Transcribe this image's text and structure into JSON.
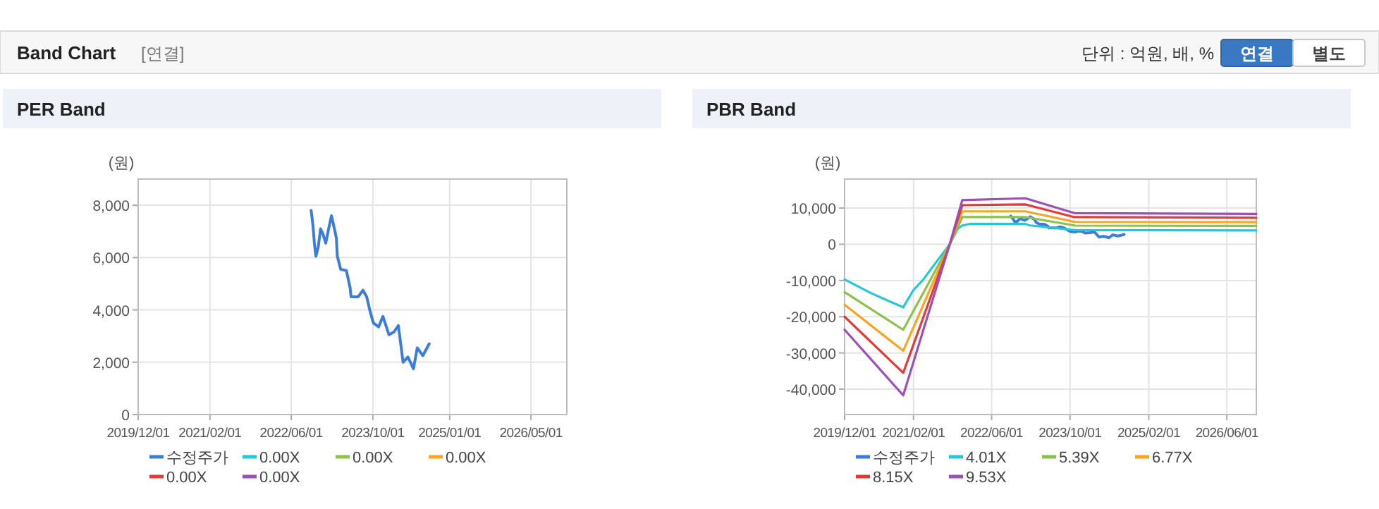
{
  "chart_data": [
    {
      "type": "other",
      "title": "Band Chart",
      "subtitle": "[연결]",
      "annotations": [
        "단위 : 억원, 배, %",
        "연결",
        "별도"
      ]
    },
    {
      "type": "line",
      "title": "PER Band",
      "ylabel": "(원)",
      "xlim": [
        "2019-12-01",
        "2026-12-01"
      ],
      "ylim": [
        0,
        9000
      ],
      "xticks": [
        {
          "value": "2019-12-01",
          "label": "2019/12/01"
        },
        {
          "value": "2021-02-01",
          "label": "2021/02/01"
        },
        {
          "value": "2022-06-01",
          "label": "2022/06/01"
        },
        {
          "value": "2023-10-01",
          "label": "2023/10/01"
        },
        {
          "value": "2025-01-01",
          "label": "2025/01/01"
        },
        {
          "value": "2026-05-01",
          "label": "2026/05/01"
        }
      ],
      "yticks": [
        0,
        {
          "value": 2000,
          "label": "2,000"
        },
        {
          "value": 4000,
          "label": "4,000"
        },
        {
          "value": 6000,
          "label": "6,000"
        },
        {
          "value": 8000,
          "label": "8,000"
        }
      ],
      "grid": true,
      "legend": "bottom",
      "line_style": "solid",
      "series": [
        {
          "name": "수정주가",
          "color": "#3b7dd8",
          "x": [
            "2022-09-28",
            "2022-10-09",
            "2022-10-17",
            "2022-10-26",
            "2022-11-09",
            "2022-11-23",
            "2022-12-07",
            "2022-12-24",
            "2023-01-10",
            "2023-01-27",
            "2023-02-10",
            "2023-02-25",
            "2023-03-03",
            "2023-03-23",
            "2023-04-26",
            "2023-05-18",
            "2023-05-24",
            "2023-07-05",
            "2023-08-03",
            "2023-08-25",
            "2023-09-14",
            "2023-10-04",
            "2023-11-04",
            "2023-11-30",
            "2024-01-05",
            "2024-02-03",
            "2024-03-01",
            "2024-03-29",
            "2024-04-27",
            "2024-05-30",
            "2024-06-22",
            "2024-07-25",
            "2024-09-01"
          ],
          "values": [
            7800,
            7200,
            6550,
            6050,
            6400,
            7100,
            6900,
            6550,
            7100,
            7600,
            7200,
            6750,
            6050,
            5550,
            5500,
            4850,
            4500,
            4500,
            4750,
            4500,
            3950,
            3500,
            3350,
            3750,
            3050,
            3150,
            3400,
            2000,
            2200,
            1750,
            2550,
            2250,
            2700
          ]
        },
        {
          "name": "0.00X",
          "color": "#26c6da"
        },
        {
          "name": "0.00X",
          "color": "#8bc34a"
        },
        {
          "name": "0.00X",
          "color": "#f6a623"
        },
        {
          "name": "0.00X",
          "color": "#e53935"
        },
        {
          "name": "0.00X",
          "color": "#9c4fb7"
        }
      ]
    },
    {
      "type": "line",
      "title": "PBR Band",
      "ylabel": "(원)",
      "xlim": [
        "2019-12-01",
        "2026-12-01"
      ],
      "ylim": [
        -47000,
        18000
      ],
      "xticks": [
        {
          "value": "2019-12-01",
          "label": "2019/12/01"
        },
        {
          "value": "2021-02-01",
          "label": "2021/02/01"
        },
        {
          "value": "2022-06-01",
          "label": "2022/06/01"
        },
        {
          "value": "2023-10-01",
          "label": "2023/10/01"
        },
        {
          "value": "2025-02-01",
          "label": "2025/02/01"
        },
        {
          "value": "2026-06-01",
          "label": "2026/06/01"
        }
      ],
      "yticks": [
        {
          "value": -40000,
          "label": "-40,000"
        },
        {
          "value": -30000,
          "label": "-30,000"
        },
        {
          "value": -20000,
          "label": "-20,000"
        },
        {
          "value": -10000,
          "label": "-10,000"
        },
        0,
        {
          "value": 10000,
          "label": "10,000"
        }
      ],
      "grid": true,
      "legend": "bottom",
      "line_style": "solid",
      "series": [
        {
          "name": "수정주가",
          "color": "#3b7dd8",
          "x": [
            "2022-09-28",
            "2022-10-09",
            "2022-10-17",
            "2022-10-26",
            "2022-11-09",
            "2022-11-23",
            "2022-12-07",
            "2022-12-24",
            "2023-01-10",
            "2023-01-27",
            "2023-02-10",
            "2023-02-25",
            "2023-03-03",
            "2023-03-23",
            "2023-04-26",
            "2023-05-18",
            "2023-05-24",
            "2023-07-05",
            "2023-08-03",
            "2023-08-25",
            "2023-09-14",
            "2023-10-04",
            "2023-11-04",
            "2023-11-30",
            "2024-01-05",
            "2024-02-03",
            "2024-03-01",
            "2024-03-29",
            "2024-04-27",
            "2024-05-30",
            "2024-06-22",
            "2024-07-25",
            "2024-09-01"
          ],
          "values": [
            7800,
            7200,
            6600,
            6100,
            6400,
            7100,
            6900,
            6600,
            7100,
            7600,
            7200,
            6800,
            6100,
            5600,
            5500,
            4900,
            4500,
            4500,
            4800,
            4500,
            4000,
            3500,
            3400,
            3800,
            3100,
            3200,
            3400,
            2000,
            2200,
            1800,
            2600,
            2300,
            2700
          ]
        },
        {
          "name": "4.01X",
          "color": "#26c6da",
          "x": [
            "2019-12-01",
            "2020-05-14",
            "2020-09-08",
            "2020-11-29",
            "2021-02-01",
            "2021-03-29",
            "2021-06-24",
            "2021-09-14",
            "2021-11-03",
            "2021-12-01",
            "2022-01-15",
            "2022-12-28",
            "2023-01-26",
            "2023-10-28",
            "2026-12-01"
          ],
          "values": [
            -9700,
            -13500,
            -15800,
            -17400,
            -12600,
            -10000,
            -4800,
            0,
            4300,
            5200,
            5600,
            5600,
            5200,
            3900,
            3800
          ]
        },
        {
          "name": "5.39X",
          "color": "#8bc34a",
          "x": [
            "2019-12-01",
            "2020-11-29",
            "2021-09-14",
            "2021-12-01",
            "2022-12-28",
            "2023-10-28",
            "2026-12-01"
          ],
          "values": [
            -13200,
            -23600,
            0,
            7500,
            7500,
            5200,
            5100
          ]
        },
        {
          "name": "6.77X",
          "color": "#f6a623",
          "x": [
            "2019-12-01",
            "2020-11-29",
            "2021-09-14",
            "2021-12-01",
            "2022-12-28",
            "2023-10-28",
            "2026-12-01"
          ],
          "values": [
            -16700,
            -29400,
            0,
            9100,
            9100,
            6200,
            6100
          ]
        },
        {
          "name": "8.15X",
          "color": "#e53935",
          "x": [
            "2019-12-01",
            "2020-11-29",
            "2021-09-14",
            "2021-12-01",
            "2022-12-28",
            "2023-10-28",
            "2026-12-01"
          ],
          "values": [
            -20000,
            -35500,
            0,
            10800,
            11000,
            7500,
            7300
          ]
        },
        {
          "name": "9.53X",
          "color": "#9c4fb7",
          "x": [
            "2019-12-01",
            "2020-11-29",
            "2021-09-14",
            "2021-12-01",
            "2022-12-28",
            "2023-10-28",
            "2026-12-01"
          ],
          "values": [
            -23600,
            -41700,
            0,
            12200,
            12700,
            8600,
            8400
          ]
        }
      ]
    }
  ]
}
